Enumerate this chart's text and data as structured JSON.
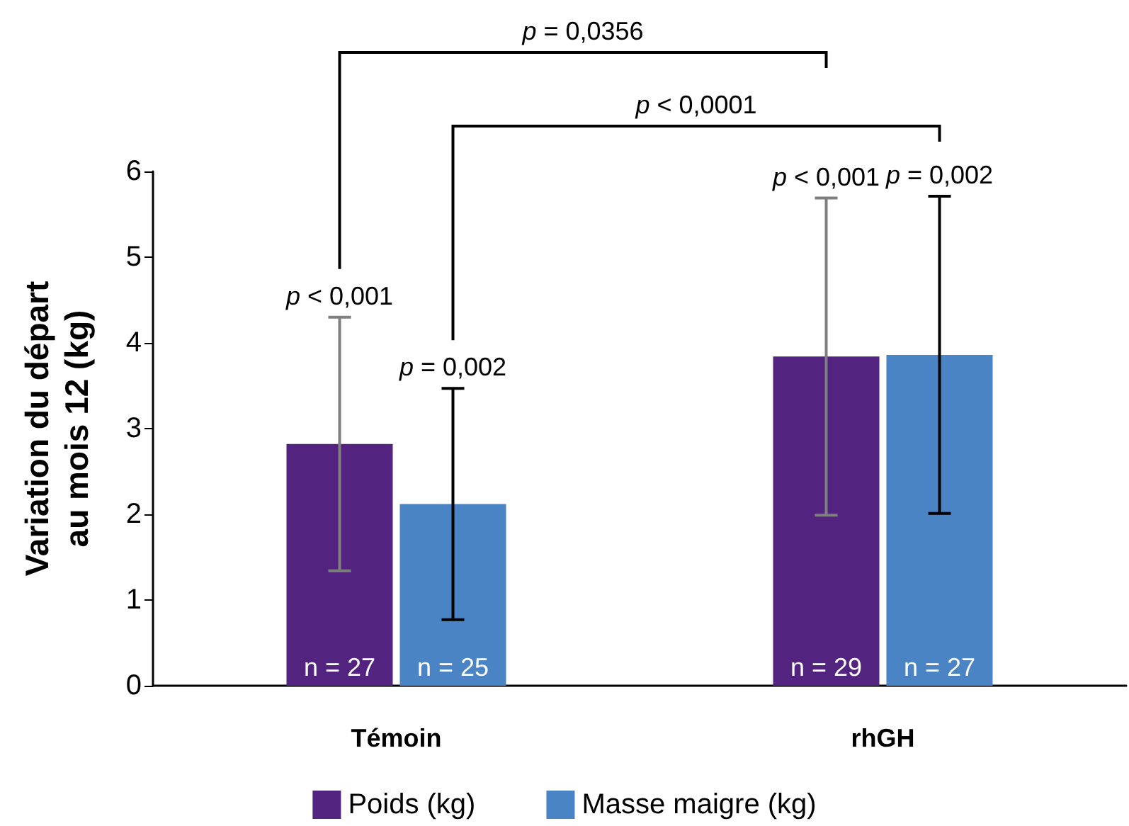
{
  "chart_data": {
    "type": "bar",
    "ylabel": "Variation du départ\nau mois 12 (kg)",
    "categories": [
      "Témoin",
      "rhGH"
    ],
    "series": [
      {
        "name": "Poids (kg)",
        "color": "#52237f",
        "values": [
          2.82,
          3.84
        ],
        "errors": [
          1.48,
          1.85
        ]
      },
      {
        "name": "Masse maigre (kg)",
        "color": "#4a84c4",
        "values": [
          2.12,
          3.86
        ],
        "errors": [
          1.35,
          1.85
        ]
      }
    ],
    "ylim": [
      0,
      6
    ],
    "yticks": [
      0,
      1,
      2,
      3,
      4,
      5,
      6
    ],
    "grid": false,
    "legend": "bottom",
    "annotations": [
      "p < 0,001",
      "p = 0,002",
      "p < 0,001",
      "p = 0,002",
      "n = 27",
      "n = 25",
      "n = 29",
      "n = 27",
      "p = 0,0356",
      "p < 0,0001"
    ]
  }
}
